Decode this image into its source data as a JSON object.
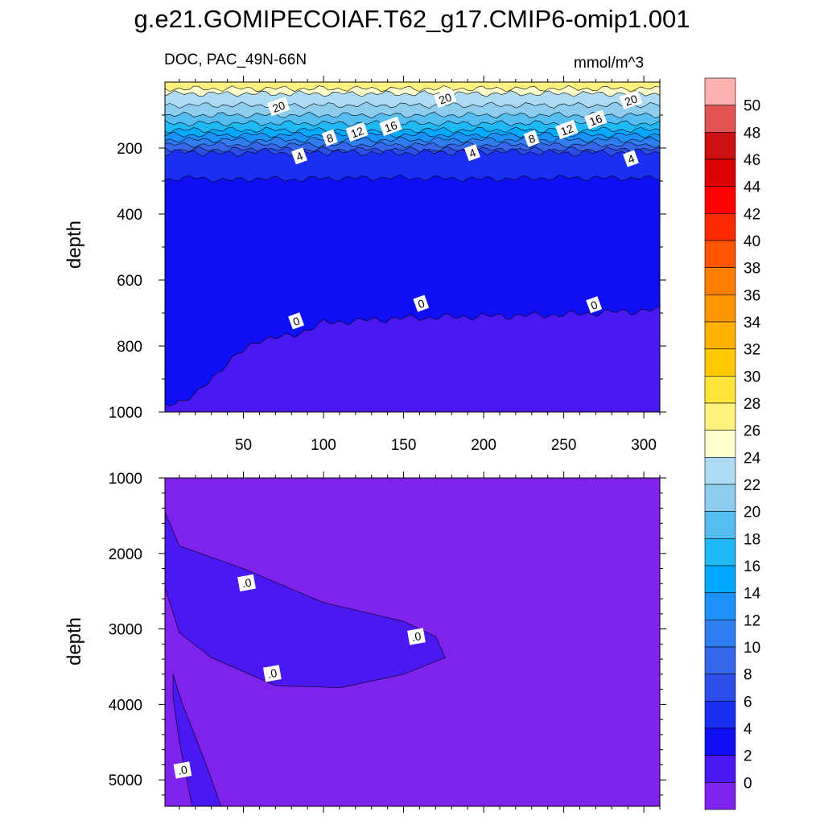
{
  "title": "g.e21.GOMIPECOIAF.T62_g17.CMIP6-omip1.001",
  "subtitle_left": "DOC, PAC_49N-66N",
  "subtitle_right": "mmol/m^3",
  "chart_data": [
    {
      "type": "heatmap",
      "panel": "upper",
      "ylabel": "depth",
      "xlabel": "",
      "xlim": [
        1,
        310
      ],
      "ylim": [
        1000,
        0
      ],
      "x_ticks": [
        50,
        100,
        150,
        200,
        250,
        300
      ],
      "y_ticks": [
        200,
        400,
        600,
        800,
        1000
      ],
      "contour_labels": [
        {
          "text": "20",
          "x": 72,
          "y": 75
        },
        {
          "text": "20",
          "x": 176,
          "y": 50
        },
        {
          "text": "20",
          "x": 292,
          "y": 55
        },
        {
          "text": "16",
          "x": 142,
          "y": 135
        },
        {
          "text": "16",
          "x": 270,
          "y": 115
        },
        {
          "text": "12",
          "x": 121,
          "y": 152
        },
        {
          "text": "12",
          "x": 252,
          "y": 145
        },
        {
          "text": "8",
          "x": 104,
          "y": 170
        },
        {
          "text": "8",
          "x": 230,
          "y": 172
        },
        {
          "text": "4",
          "x": 85,
          "y": 225
        },
        {
          "text": "4",
          "x": 193,
          "y": 215
        },
        {
          "text": "4",
          "x": 292,
          "y": 233
        },
        {
          "text": "0",
          "x": 83,
          "y": 725
        },
        {
          "text": "0",
          "x": 161,
          "y": 672
        },
        {
          "text": "0",
          "x": 269,
          "y": 676
        }
      ],
      "boundaries": {
        "x": [
          1,
          20,
          40,
          60,
          80,
          100,
          150,
          200,
          250,
          310
        ],
        "depth_4": [
          215,
          212,
          218,
          210,
          215,
          212,
          215,
          210,
          215,
          212
        ],
        "depth_2": [
          295,
          290,
          298,
          292,
          296,
          292,
          290,
          294,
          290,
          292
        ],
        "depth_0": [
          980,
          950,
          850,
          780,
          770,
          730,
          715,
          710,
          705,
          690
        ]
      }
    },
    {
      "type": "heatmap",
      "panel": "lower",
      "ylabel": "depth",
      "xlabel": "",
      "xlim": [
        1,
        310
      ],
      "ylim": [
        5350,
        1000
      ],
      "x_ticks": [
        50,
        100,
        150,
        200,
        250,
        300
      ],
      "y_ticks": [
        1000,
        2000,
        3000,
        4000,
        5000
      ],
      "contour_labels": [
        {
          "text": ".0",
          "x": 52,
          "y": 2390
        },
        {
          "text": ".0",
          "x": 158,
          "y": 3100
        },
        {
          "text": ".0",
          "x": 68,
          "y": 3590
        },
        {
          "text": ".0",
          "x": 12,
          "y": 4870
        }
      ],
      "low_region_1": [
        [
          1,
          1450
        ],
        [
          10,
          1900
        ],
        [
          50,
          2200
        ],
        [
          100,
          2650
        ],
        [
          150,
          2900
        ],
        [
          170,
          3100
        ],
        [
          176,
          3380
        ],
        [
          150,
          3600
        ],
        [
          110,
          3780
        ],
        [
          70,
          3750
        ],
        [
          30,
          3380
        ],
        [
          10,
          3050
        ],
        [
          1,
          2450
        ]
      ],
      "low_region_2": [
        [
          6,
          3600
        ],
        [
          12,
          4000
        ],
        [
          25,
          4700
        ],
        [
          36,
          5350
        ],
        [
          18,
          5350
        ],
        [
          10,
          4500
        ],
        [
          6,
          3900
        ]
      ]
    }
  ],
  "colorbar": {
    "labels": [
      "50",
      "48",
      "46",
      "44",
      "42",
      "40",
      "38",
      "36",
      "34",
      "32",
      "30",
      "28",
      "26",
      "24",
      "22",
      "20",
      "18",
      "16",
      "14",
      "12",
      "10",
      "8",
      "6",
      "4",
      "2",
      "0"
    ],
    "colors": [
      "#ffb2b2",
      "#e25454",
      "#cc1010",
      "#dc0000",
      "#ff0000",
      "#ff2a00",
      "#ff5500",
      "#ff7f00",
      "#ff9600",
      "#ffb200",
      "#ffc900",
      "#ffe53a",
      "#fff27f",
      "#ffffce",
      "#aedbf4",
      "#8ecdee",
      "#56bdf0",
      "#1fbaf6",
      "#00aaff",
      "#1a92fa",
      "#2e7ef2",
      "#3666ea",
      "#2c4ee8",
      "#1a2ef4",
      "#0f0ff5",
      "#4a18f2",
      "#7f22ee"
    ]
  }
}
